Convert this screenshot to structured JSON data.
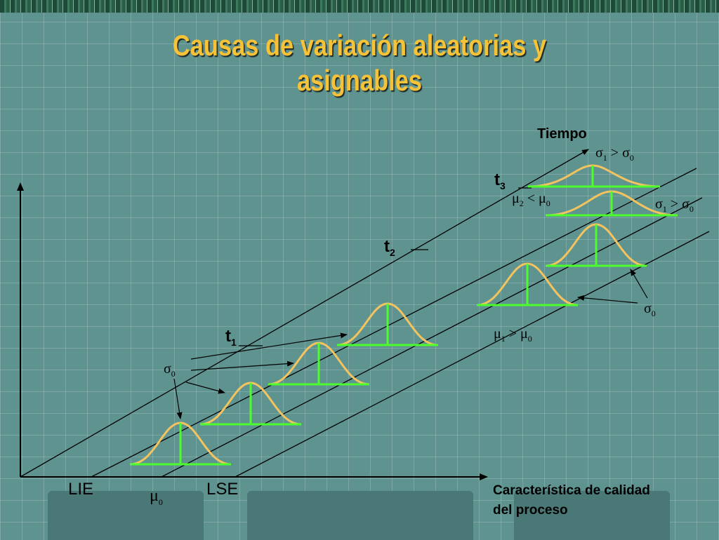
{
  "header_band": {
    "text": ""
  },
  "title": {
    "line1": "Causas de variación aleatorias y",
    "line2": "asignables"
  },
  "axis": {
    "x_caption_line1": "Característica de calidad",
    "x_caption_line2": "del proceso",
    "time_label": "Tiempo",
    "lie_label": "LIE",
    "lse_label": "LSE"
  },
  "time_marks": [
    {
      "base": "t",
      "sub": "1"
    },
    {
      "base": "t",
      "sub": "2"
    },
    {
      "base": "t",
      "sub": "3"
    }
  ],
  "greek_labels": {
    "mu0_axis": {
      "sym": "μ",
      "sub": "0"
    },
    "sigma0_left": {
      "sym": "σ",
      "sub": "0"
    },
    "sigma0_right": {
      "sym": "σ",
      "sub": "0"
    },
    "mu1_gt_mu0": {
      "sym1": "μ",
      "sub1": "1",
      "op": " > ",
      "sym2": "μ",
      "sub2": "0"
    },
    "mu2_lt_mu0": {
      "sym1": "μ",
      "sub1": "2",
      "op": " < ",
      "sym2": "μ",
      "sub2": "0"
    },
    "sigma1_gt_sigma0_top": {
      "sym1": "σ",
      "sub1": "1",
      "op": " > ",
      "sym2": "σ",
      "sub2": "0"
    },
    "sigma1_gt_sigma0_mid": {
      "sym1": "σ",
      "sub1": "1",
      "op": " > ",
      "sym2": "σ",
      "sub2": "0"
    }
  },
  "colors": {
    "curve": "#f3c35f",
    "baseline": "#4cff2c",
    "axis": "#000000",
    "title": "#f6c238",
    "background": "#5e9390"
  }
}
